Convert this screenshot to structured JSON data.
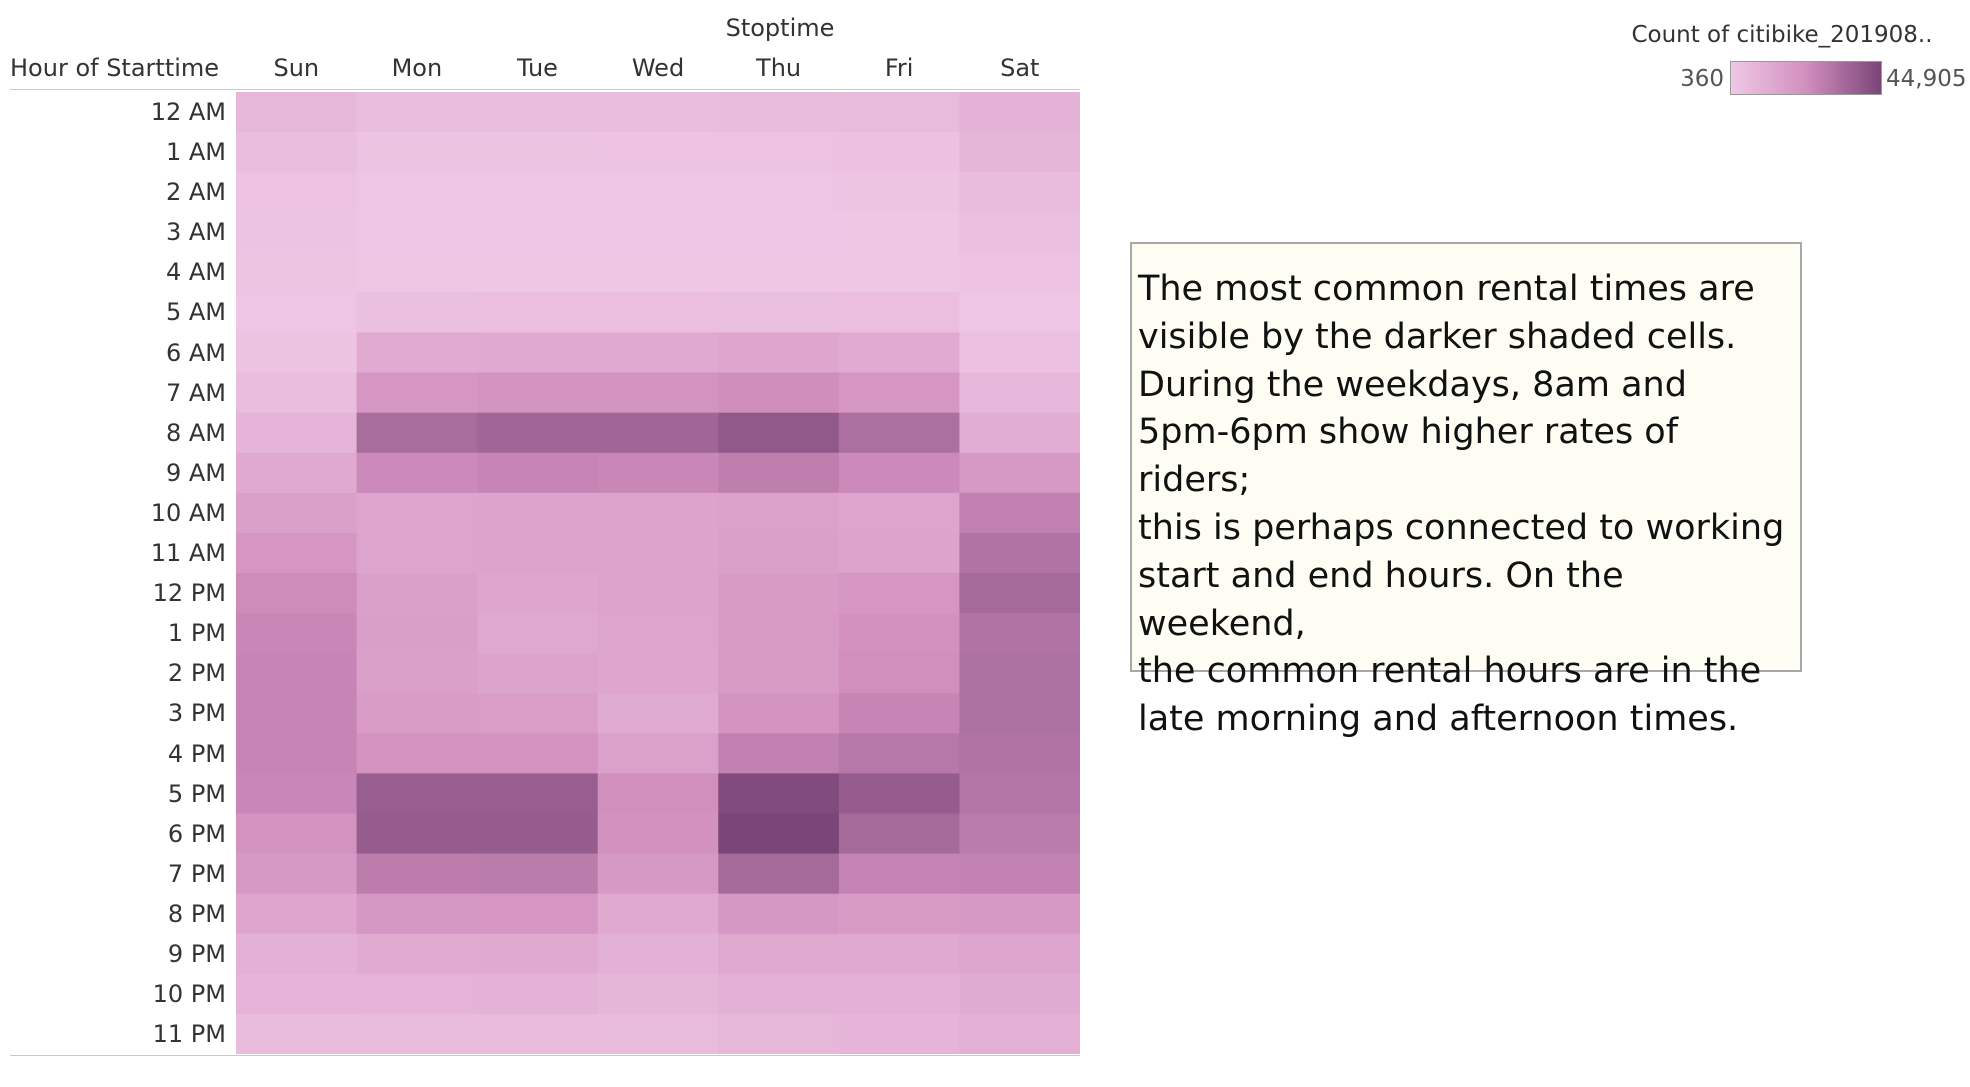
{
  "chart_data": {
    "type": "heatmap",
    "column_group_title": "Stoptime",
    "row_header": "Hour of Starttime",
    "columns": [
      "Sun",
      "Mon",
      "Tue",
      "Wed",
      "Thu",
      "Fri",
      "Sat"
    ],
    "rows": [
      "12 AM",
      "1 AM",
      "2 AM",
      "3 AM",
      "4 AM",
      "5 AM",
      "6 AM",
      "7 AM",
      "8 AM",
      "9 AM",
      "10 AM",
      "11 AM",
      "12 PM",
      "1 PM",
      "2 PM",
      "3 PM",
      "4 PM",
      "5 PM",
      "6 PM",
      "7 PM",
      "8 PM",
      "9 PM",
      "10 PM",
      "11 PM"
    ],
    "values": [
      [
        7000,
        4500,
        4500,
        4800,
        5200,
        5800,
        9000
      ],
      [
        5000,
        2500,
        2500,
        2700,
        2900,
        3300,
        7500
      ],
      [
        3200,
        1500,
        1500,
        1600,
        1700,
        2000,
        5200
      ],
      [
        2200,
        1000,
        1000,
        1100,
        1100,
        1300,
        3800
      ],
      [
        1800,
        1200,
        1200,
        1200,
        1200,
        1300,
        2600
      ],
      [
        1500,
        4000,
        4200,
        4300,
        4400,
        4100,
        1600
      ],
      [
        2500,
        12000,
        12500,
        12500,
        13500,
        12000,
        3500
      ],
      [
        4500,
        20000,
        21000,
        21000,
        23000,
        20000,
        6500
      ],
      [
        8000,
        33000,
        35000,
        35000,
        39000,
        32000,
        11000
      ],
      [
        12500,
        24000,
        25500,
        25000,
        27500,
        24000,
        19000
      ],
      [
        16000,
        14000,
        14500,
        14500,
        15500,
        14000,
        27000
      ],
      [
        20000,
        14000,
        14500,
        14500,
        16000,
        15000,
        31000
      ],
      [
        23500,
        16000,
        13500,
        15000,
        18000,
        20000,
        34000
      ],
      [
        25000,
        16500,
        13000,
        14000,
        18500,
        22000,
        31000
      ],
      [
        25500,
        16000,
        15000,
        13500,
        18500,
        22500,
        31500
      ],
      [
        25500,
        17500,
        17000,
        11500,
        20500,
        25500,
        31500
      ],
      [
        25500,
        21500,
        21500,
        15500,
        27000,
        29500,
        31000
      ],
      [
        25000,
        37500,
        37500,
        22500,
        43000,
        38000,
        30500
      ],
      [
        21000,
        38000,
        38000,
        22000,
        44905,
        34000,
        28500
      ],
      [
        19000,
        28000,
        28500,
        19000,
        34000,
        26000,
        26500
      ],
      [
        14000,
        19500,
        20000,
        12500,
        19500,
        18000,
        19000
      ],
      [
        9500,
        12000,
        12500,
        9500,
        13000,
        12500,
        14000
      ],
      [
        8000,
        8500,
        9000,
        7500,
        9500,
        9500,
        11500
      ],
      [
        5500,
        5500,
        5700,
        5800,
        7000,
        8000,
        10000
      ]
    ],
    "color_min": 360,
    "color_max": 44905,
    "colors": {
      "low": "#f0c8e6",
      "mid": "#d18fbe",
      "high": "#7a4577"
    },
    "legend_title": "Count of citibike_201908..",
    "legend_min_label": "360",
    "legend_max_label": "44,905",
    "legend": "top-right"
  },
  "annotation": {
    "lines": [
      "The most common rental times are",
      "visible by the darker shaded cells.",
      "During the weekdays, 8am and",
      "5pm-6pm show higher rates of riders;",
      "this is perhaps connected to working",
      "start and end hours. On the weekend,",
      "the common rental hours are in the",
      "late morning and afternoon times."
    ]
  }
}
